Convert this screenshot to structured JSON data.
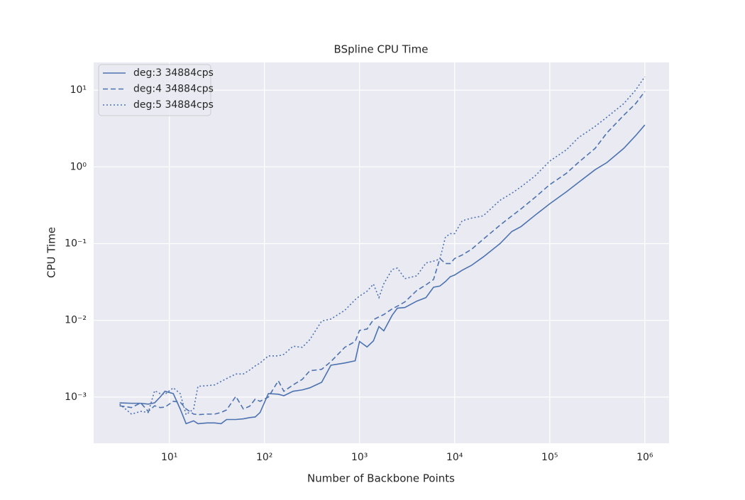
{
  "chart_data": {
    "type": "line",
    "title": "BSpline CPU Time",
    "x_label": "Number of Backbone Points",
    "y_label": "CPU Time",
    "x_scale": "log",
    "y_scale": "log",
    "grid": true,
    "legend_position": "upper left",
    "xlim": [
      1.6,
      1800000
    ],
    "ylim": [
      0.00025,
      23
    ],
    "xticks": [
      {
        "value": 10,
        "label": "10¹"
      },
      {
        "value": 100,
        "label": "10²"
      },
      {
        "value": 1000,
        "label": "10³"
      },
      {
        "value": 10000,
        "label": "10⁴"
      },
      {
        "value": 100000,
        "label": "10⁵"
      },
      {
        "value": 1000000,
        "label": "10⁶"
      }
    ],
    "yticks": [
      {
        "value": 0.001,
        "label": "10⁻³"
      },
      {
        "value": 0.01,
        "label": "10⁻²"
      },
      {
        "value": 0.1,
        "label": "10⁻¹"
      },
      {
        "value": 1,
        "label": "10⁰"
      },
      {
        "value": 10,
        "label": "10¹"
      }
    ],
    "x": [
      3,
      4,
      5,
      6,
      7,
      8,
      9,
      11,
      13,
      15,
      18,
      20,
      25,
      30,
      35,
      40,
      50,
      60,
      70,
      80,
      90,
      110,
      140,
      160,
      200,
      250,
      300,
      400,
      500,
      700,
      900,
      1000,
      1200,
      1400,
      1600,
      1800,
      2200,
      2500,
      3000,
      4000,
      5000,
      6000,
      7000,
      8000,
      9000,
      10000,
      12000,
      15000,
      20000,
      30000,
      40000,
      50000,
      70000,
      100000,
      150000,
      200000,
      300000,
      400000,
      600000,
      800000,
      1000000
    ],
    "series": [
      {
        "name": "deg:3 34884cps",
        "color": "#4c72b0",
        "linestyle": "solid",
        "values": [
          0.00084,
          0.00083,
          0.00083,
          0.00081,
          0.00084,
          0.001,
          0.00119,
          0.00111,
          0.0007,
          0.00045,
          0.00049,
          0.00045,
          0.00046,
          0.00046,
          0.00045,
          0.00051,
          0.00051,
          0.00052,
          0.00054,
          0.00055,
          0.00063,
          0.00111,
          0.00109,
          0.00104,
          0.00119,
          0.00124,
          0.00132,
          0.00156,
          0.0026,
          0.00278,
          0.00297,
          0.0053,
          0.0045,
          0.0054,
          0.0083,
          0.0073,
          0.0116,
          0.0144,
          0.0147,
          0.0178,
          0.0198,
          0.027,
          0.028,
          0.032,
          0.037,
          0.039,
          0.045,
          0.052,
          0.067,
          0.1,
          0.144,
          0.167,
          0.234,
          0.33,
          0.474,
          0.625,
          0.918,
          1.14,
          1.74,
          2.55,
          3.52
        ]
      },
      {
        "name": "deg:4 34884cps",
        "color": "#4c72b0",
        "linestyle": "dashed",
        "values": [
          0.00077,
          0.00073,
          0.00084,
          0.00065,
          0.00077,
          0.00073,
          0.00074,
          0.00088,
          0.00086,
          0.0007,
          0.0006,
          0.00059,
          0.0006,
          0.0006,
          0.00063,
          0.00068,
          0.00102,
          0.0007,
          0.00076,
          0.00094,
          0.00088,
          0.001,
          0.00163,
          0.00119,
          0.00144,
          0.0017,
          0.0022,
          0.0023,
          0.0029,
          0.00445,
          0.0053,
          0.0074,
          0.0077,
          0.0102,
          0.0111,
          0.0119,
          0.0141,
          0.0153,
          0.0174,
          0.0245,
          0.029,
          0.034,
          0.064,
          0.055,
          0.055,
          0.064,
          0.071,
          0.084,
          0.114,
          0.174,
          0.23,
          0.284,
          0.4,
          0.587,
          0.826,
          1.14,
          1.74,
          2.78,
          4.7,
          6.67,
          9.6
        ]
      },
      {
        "name": "deg:5 34884cps",
        "color": "#4c72b0",
        "linestyle": "dotted",
        "values": [
          0.00081,
          0.0006,
          0.00065,
          0.00063,
          0.00121,
          0.00111,
          0.00109,
          0.00132,
          0.00111,
          0.00059,
          0.0007,
          0.00138,
          0.00141,
          0.00144,
          0.0016,
          0.00174,
          0.002,
          0.002,
          0.00225,
          0.00255,
          0.00278,
          0.00344,
          0.00344,
          0.0036,
          0.0046,
          0.00445,
          0.0056,
          0.0098,
          0.0104,
          0.0135,
          0.0186,
          0.0207,
          0.024,
          0.0297,
          0.0198,
          0.03,
          0.046,
          0.048,
          0.035,
          0.038,
          0.056,
          0.059,
          0.063,
          0.121,
          0.135,
          0.135,
          0.198,
          0.215,
          0.23,
          0.367,
          0.454,
          0.551,
          0.76,
          1.19,
          1.67,
          2.4,
          3.37,
          4.45,
          6.67,
          10,
          15
        ]
      }
    ]
  }
}
